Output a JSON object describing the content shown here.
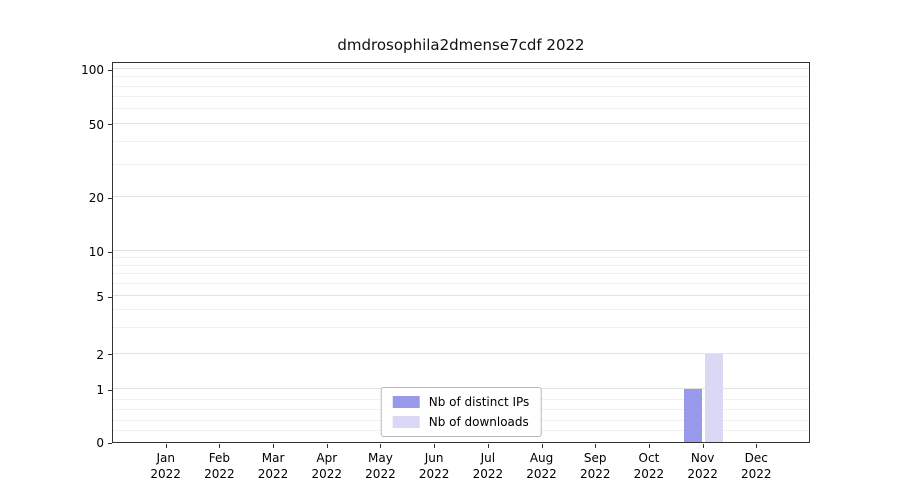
{
  "chart_data": {
    "type": "bar",
    "title": "dmdrosophila2dmense7cdf 2022",
    "x_months": [
      "Jan",
      "Feb",
      "Mar",
      "Apr",
      "May",
      "Jun",
      "Jul",
      "Aug",
      "Sep",
      "Oct",
      "Nov",
      "Dec"
    ],
    "x_year": "2022",
    "y_ticks": [
      0,
      1,
      2,
      5,
      10,
      20,
      50,
      100
    ],
    "y_minor_ticks": [
      0.2,
      0.4,
      0.6,
      0.8,
      3,
      4,
      6,
      7,
      8,
      9,
      30,
      40,
      60,
      70,
      80,
      90
    ],
    "y_scale": "symlog",
    "ylim": [
      0,
      110
    ],
    "grid": "horizontal",
    "legend_position": "lower center",
    "series": [
      {
        "name": "Nb of distinct IPs",
        "color": "#9999ec",
        "values": [
          0,
          0,
          0,
          0,
          0,
          0,
          0,
          0,
          0,
          0,
          1,
          0
        ]
      },
      {
        "name": "Nb of downloads",
        "color": "#d9d9f6",
        "values": [
          0,
          0,
          0,
          0,
          0,
          0,
          0,
          0,
          0,
          0,
          2,
          0
        ]
      }
    ]
  }
}
